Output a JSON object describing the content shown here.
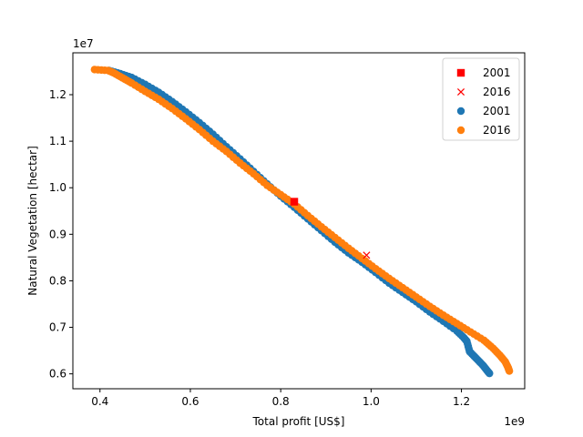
{
  "chart_data": {
    "type": "scatter",
    "title": "",
    "xlabel": "Total profit [US$]",
    "ylabel": "Natural Vegetation [hectar]",
    "x_offset_text": "1e9",
    "y_offset_text": "1e7",
    "x_scale_factor": 1000000000,
    "y_scale_factor": 10000000,
    "xlim": [
      0.34,
      1.34
    ],
    "ylim": [
      0.568,
      1.29
    ],
    "xticks": [
      0.4,
      0.6,
      0.8,
      1.0,
      1.2
    ],
    "xtick_labels": [
      "0.4",
      "0.6",
      "0.8",
      "1.0",
      "1.2"
    ],
    "yticks": [
      0.6,
      0.7,
      0.8,
      0.9,
      1.0,
      1.1,
      1.2
    ],
    "ytick_labels": [
      "0.6",
      "0.7",
      "0.8",
      "0.9",
      "1.0",
      "1.1",
      "1.2"
    ],
    "grid": false,
    "legend_position": "top-right",
    "legend": [
      {
        "label": "2001",
        "marker": "square",
        "color": "#ff0000"
      },
      {
        "label": "2016",
        "marker": "x",
        "color": "#ff0000"
      },
      {
        "label": "2001",
        "marker": "circle",
        "color": "#1f77b4"
      },
      {
        "label": "2016",
        "marker": "circle",
        "color": "#ff7f0e"
      }
    ],
    "series": [
      {
        "name": "2001",
        "marker": "circle",
        "color": "#1f77b4",
        "points": [
          [
            0.42,
            1.252
          ],
          [
            0.445,
            1.245
          ],
          [
            0.47,
            1.237
          ],
          [
            0.5,
            1.222
          ],
          [
            0.53,
            1.205
          ],
          [
            0.56,
            1.185
          ],
          [
            0.59,
            1.163
          ],
          [
            0.62,
            1.14
          ],
          [
            0.65,
            1.115
          ],
          [
            0.68,
            1.088
          ],
          [
            0.71,
            1.062
          ],
          [
            0.74,
            1.035
          ],
          [
            0.77,
            1.008
          ],
          [
            0.8,
            0.982
          ],
          [
            0.83,
            0.958
          ],
          [
            0.86,
            0.933
          ],
          [
            0.89,
            0.908
          ],
          [
            0.92,
            0.883
          ],
          [
            0.95,
            0.86
          ],
          [
            0.98,
            0.84
          ],
          [
            1.01,
            0.818
          ],
          [
            1.04,
            0.795
          ],
          [
            1.07,
            0.775
          ],
          [
            1.1,
            0.755
          ],
          [
            1.13,
            0.733
          ],
          [
            1.16,
            0.713
          ],
          [
            1.19,
            0.692
          ],
          [
            1.205,
            0.678
          ],
          [
            1.212,
            0.67
          ],
          [
            1.218,
            0.648
          ],
          [
            1.228,
            0.638
          ],
          [
            1.238,
            0.628
          ],
          [
            1.248,
            0.618
          ],
          [
            1.256,
            0.608
          ],
          [
            1.262,
            0.601
          ]
        ]
      },
      {
        "name": "2016",
        "marker": "circle",
        "color": "#ff7f0e",
        "points": [
          [
            0.388,
            1.254
          ],
          [
            0.418,
            1.252
          ],
          [
            0.43,
            1.247
          ],
          [
            0.45,
            1.236
          ],
          [
            0.47,
            1.225
          ],
          [
            0.5,
            1.207
          ],
          [
            0.53,
            1.19
          ],
          [
            0.56,
            1.17
          ],
          [
            0.59,
            1.148
          ],
          [
            0.62,
            1.125
          ],
          [
            0.65,
            1.1
          ],
          [
            0.68,
            1.078
          ],
          [
            0.71,
            1.053
          ],
          [
            0.74,
            1.03
          ],
          [
            0.77,
            1.005
          ],
          [
            0.8,
            0.985
          ],
          [
            0.83,
            0.965
          ],
          [
            0.86,
            0.94
          ],
          [
            0.89,
            0.916
          ],
          [
            0.92,
            0.893
          ],
          [
            0.95,
            0.87
          ],
          [
            0.98,
            0.848
          ],
          [
            1.01,
            0.826
          ],
          [
            1.04,
            0.805
          ],
          [
            1.07,
            0.785
          ],
          [
            1.1,
            0.765
          ],
          [
            1.13,
            0.745
          ],
          [
            1.16,
            0.726
          ],
          [
            1.19,
            0.708
          ],
          [
            1.22,
            0.69
          ],
          [
            1.25,
            0.672
          ],
          [
            1.27,
            0.655
          ],
          [
            1.285,
            0.64
          ],
          [
            1.297,
            0.626
          ],
          [
            1.303,
            0.614
          ],
          [
            1.306,
            0.606
          ]
        ]
      },
      {
        "name": "2001",
        "marker": "square",
        "color": "#ff0000",
        "points": [
          [
            0.83,
            0.97
          ]
        ]
      },
      {
        "name": "2016",
        "marker": "x",
        "color": "#ff0000",
        "points": [
          [
            0.99,
            0.855
          ]
        ]
      }
    ]
  }
}
